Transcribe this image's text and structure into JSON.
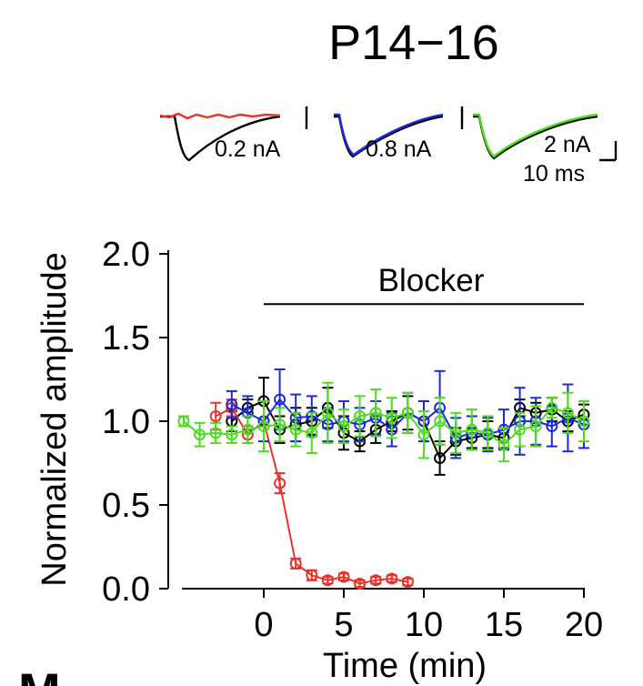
{
  "chart_data": {
    "type": "line",
    "title": "P14−16",
    "xlabel": "Time (min)",
    "ylabel": "Normalized amplitude",
    "xlim": [
      -5,
      20
    ],
    "ylim": [
      0,
      2.0
    ],
    "xticks": [
      "0",
      "5",
      "10",
      "15",
      "20"
    ],
    "yticks": [
      "0.0",
      "0.5",
      "1.0",
      "1.5",
      "2.0"
    ],
    "annotation": {
      "label": "Blocker",
      "x_start": 0,
      "x_end": 20,
      "y": 1.7
    },
    "panel_letter": "M",
    "scale_labels": {
      "red_black": "0.2 nA",
      "blue_black": "0.8 nA",
      "green_black": "2 nA",
      "time": "10 ms"
    },
    "series": [
      {
        "name": "black",
        "color": "#000000",
        "x": [
          -2,
          -1,
          0,
          1,
          2,
          3,
          4,
          5,
          6,
          7,
          8,
          9,
          10,
          11,
          12,
          13,
          14,
          15,
          16,
          17,
          18,
          19,
          20
        ],
        "values": [
          1.0,
          1.08,
          1.12,
          0.95,
          0.98,
          1.0,
          1.08,
          0.93,
          0.88,
          0.95,
          1.0,
          1.05,
          1.0,
          0.78,
          0.88,
          0.9,
          0.92,
          0.9,
          1.08,
          1.05,
          1.07,
          1.0,
          1.04
        ],
        "err": [
          0.06,
          0.05,
          0.14,
          0.08,
          0.1,
          0.08,
          0.12,
          0.1,
          0.06,
          0.08,
          0.06,
          0.1,
          0.12,
          0.1,
          0.08,
          0.06,
          0.08,
          0.06,
          0.05,
          0.06,
          0.07,
          0.06,
          0.06
        ]
      },
      {
        "name": "red",
        "color": "#e8322c",
        "x": [
          -3,
          -2,
          -1,
          0,
          1,
          2,
          3,
          4,
          5,
          6,
          7,
          8,
          9
        ],
        "values": [
          1.03,
          1.08,
          0.92,
          1.0,
          0.63,
          0.15,
          0.08,
          0.05,
          0.07,
          0.03,
          0.05,
          0.06,
          0.04
        ],
        "err": [
          0.08,
          0.05,
          0.05,
          0.12,
          0.06,
          0.03,
          0.03,
          0.02,
          0.02,
          0.02,
          0.02,
          0.02,
          0.02
        ]
      },
      {
        "name": "blue",
        "color": "#1d2bd6",
        "x": [
          -2,
          -1,
          0,
          1,
          2,
          3,
          4,
          5,
          6,
          7,
          8,
          9,
          10,
          11,
          12,
          13,
          14,
          15,
          16,
          17,
          18,
          19,
          20
        ],
        "values": [
          1.1,
          1.05,
          1.0,
          1.13,
          1.02,
          1.03,
          0.98,
          1.0,
          0.98,
          1.02,
          0.95,
          1.05,
          1.0,
          1.08,
          0.9,
          0.93,
          0.92,
          0.95,
          1.0,
          1.0,
          0.97,
          1.02,
          0.98
        ],
        "err": [
          0.08,
          0.1,
          0.12,
          0.18,
          0.14,
          0.12,
          0.1,
          0.12,
          0.1,
          0.1,
          0.1,
          0.12,
          0.12,
          0.22,
          0.12,
          0.1,
          0.1,
          0.12,
          0.2,
          0.14,
          0.12,
          0.2,
          0.14
        ]
      },
      {
        "name": "green",
        "color": "#4ddc1e",
        "x": [
          -5,
          -4,
          -3,
          -2,
          -1,
          0,
          1,
          2,
          3,
          4,
          5,
          6,
          7,
          8,
          9,
          10,
          11,
          12,
          13,
          14,
          15,
          16,
          17,
          18,
          19,
          20
        ],
        "values": [
          1.0,
          0.92,
          0.93,
          0.92,
          0.95,
          0.97,
          0.98,
          0.95,
          0.93,
          1.05,
          0.97,
          1.03,
          1.05,
          1.02,
          1.05,
          0.92,
          1.0,
          0.93,
          0.95,
          0.93,
          0.86,
          0.95,
          0.97,
          1.08,
          1.05,
          1.0
        ],
        "err": [
          0.03,
          0.07,
          0.06,
          0.05,
          0.08,
          0.15,
          0.1,
          0.1,
          0.12,
          0.18,
          0.1,
          0.12,
          0.14,
          0.12,
          0.12,
          0.14,
          0.14,
          0.12,
          0.12,
          0.1,
          0.1,
          0.1,
          0.12,
          0.06,
          0.12,
          0.12
        ]
      }
    ]
  }
}
